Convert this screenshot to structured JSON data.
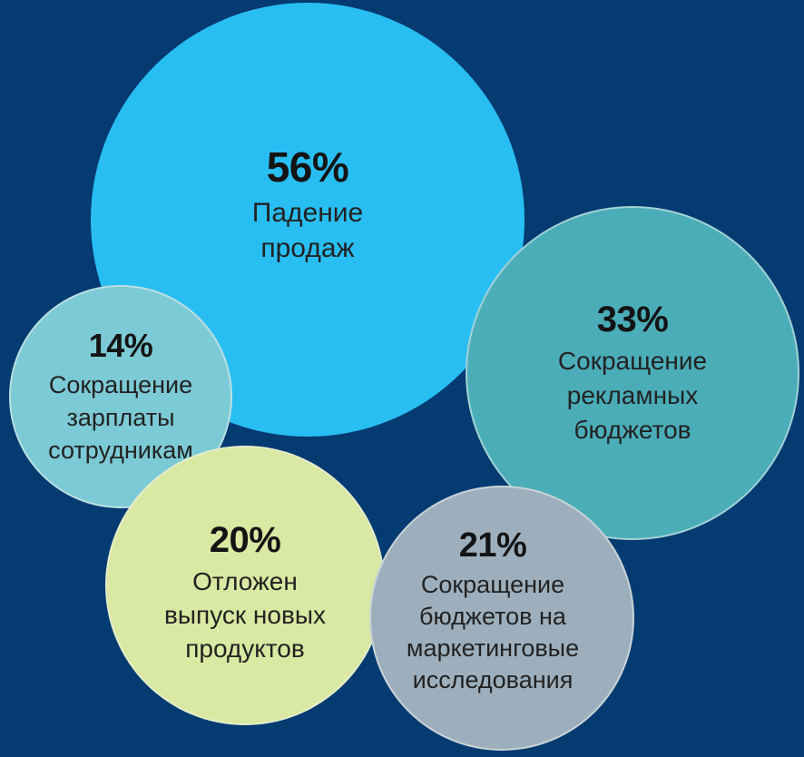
{
  "canvas": {
    "background": "#043B71"
  },
  "bubbles": [
    {
      "id": "sales-decline",
      "pct": "56%",
      "lines": [
        "Падение",
        "продаж"
      ],
      "color": "#29BEF2"
    },
    {
      "id": "ad-budget-cuts",
      "pct": "33%",
      "lines": [
        "Сокращение",
        "рекламных",
        "бюджетов"
      ],
      "color": "#4AADB8"
    },
    {
      "id": "salary-cuts",
      "pct": "14%",
      "lines": [
        "Сокращение",
        "зарплаты",
        "сотрудникам"
      ],
      "color": "#7CCAD5"
    },
    {
      "id": "product-launch-postponed",
      "pct": "20%",
      "lines": [
        "Отложен",
        "выпуск новых",
        "продуктов"
      ],
      "color": "#D9E8A2"
    },
    {
      "id": "marketing-research-budget-cuts",
      "pct": "21%",
      "lines": [
        "Сокращение",
        "бюджетов на",
        "маркетинговые",
        "исследования"
      ],
      "color": "#9DAFBC"
    }
  ],
  "chart_data": {
    "type": "bubble",
    "title": "",
    "legend": "none",
    "background_color": "#043B71",
    "categories": [
      "Падение продаж",
      "Сокращение рекламных бюджетов",
      "Сокращение зарплаты сотрудникам",
      "Отложен выпуск новых продуктов",
      "Сокращение бюджетов на маркетинговые исследования"
    ],
    "values": [
      56,
      33,
      14,
      20,
      21
    ],
    "unit": "%",
    "items": [
      {
        "label": "Падение продаж",
        "value": 56,
        "color": "#29BEF2"
      },
      {
        "label": "Сокращение рекламных бюджетов",
        "value": 33,
        "color": "#4AADB8"
      },
      {
        "label": "Сокращение зарплаты сотрудникам",
        "value": 14,
        "color": "#7CCAD5"
      },
      {
        "label": "Отложен выпуск новых продуктов",
        "value": 20,
        "color": "#D9E8A2"
      },
      {
        "label": "Сокращение бюджетов на маркетинговые исследования",
        "value": 21,
        "color": "#9DAFBC"
      }
    ]
  }
}
